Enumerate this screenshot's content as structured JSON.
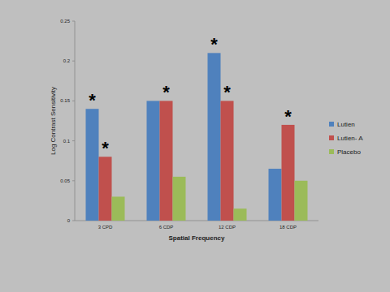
{
  "chart_data": {
    "type": "bar",
    "x_label": "Spatial Frequency",
    "y_label": "Log Contrast Sensitivity",
    "categories": [
      "3 CPD",
      "6 CDP",
      "12 CDP",
      "18 CDP"
    ],
    "series": [
      {
        "name": "Lutien",
        "color": "#4f81bd",
        "values": [
          0.14,
          0.15,
          0.21,
          0.065
        ]
      },
      {
        "name": "Lutien- A",
        "color": "#c0504d",
        "values": [
          0.08,
          0.15,
          0.15,
          0.12
        ]
      },
      {
        "name": "Placebo",
        "color": "#9bbb59",
        "values": [
          0.03,
          0.055,
          0.015,
          0.05
        ]
      }
    ],
    "annotations": [
      {
        "text": "*",
        "category": "3 CPD",
        "series": "Lutien"
      },
      {
        "text": "*",
        "category": "3 CPD",
        "series": "Lutien- A"
      },
      {
        "text": "*",
        "category": "6 CDP",
        "series": "Lutien- A"
      },
      {
        "text": "*",
        "category": "12 CDP",
        "series": "Lutien"
      },
      {
        "text": "*",
        "category": "12 CDP",
        "series": "Lutien- A"
      },
      {
        "text": "*",
        "category": "18 CDP",
        "series": "Lutien- A"
      }
    ],
    "ylim": [
      0,
      0.25
    ],
    "yticks": [
      0,
      0.05,
      0.1,
      0.15,
      0.2,
      0.25
    ],
    "grid": false,
    "legend": "right"
  }
}
